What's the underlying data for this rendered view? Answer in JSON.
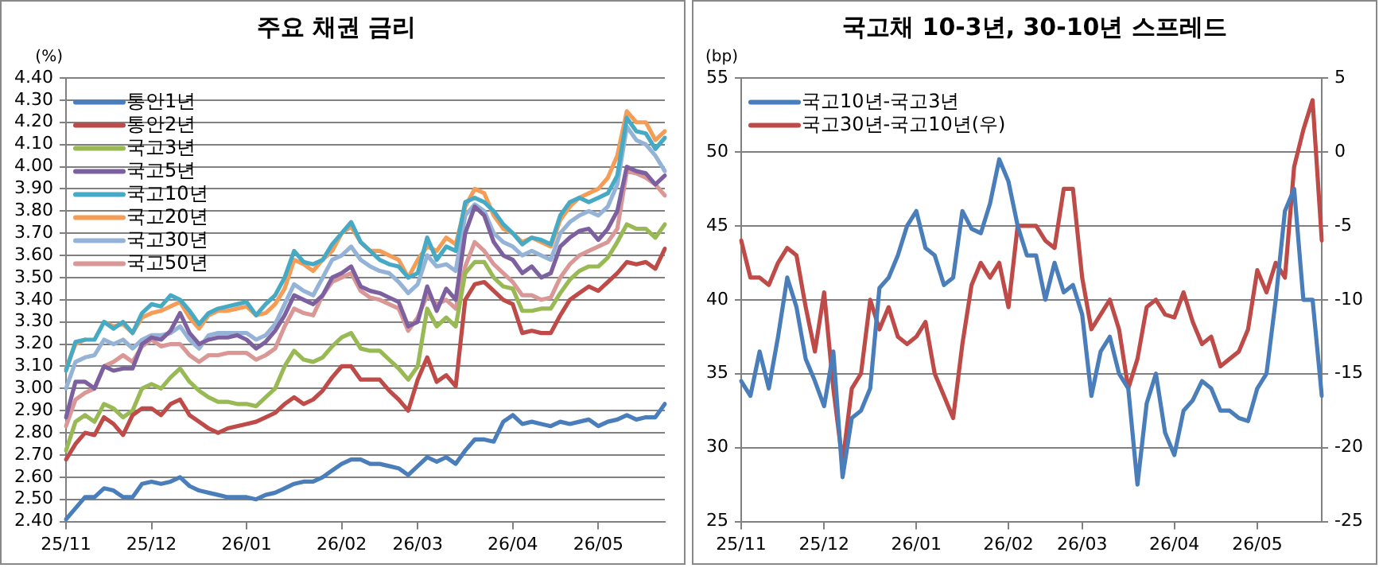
{
  "chart_data": [
    {
      "type": "line",
      "title": "주요 채권 금리",
      "ylabel": "(%)",
      "categories": [
        "25/11",
        null,
        null,
        null,
        null,
        null,
        null,
        null,
        null,
        "25/12",
        null,
        null,
        null,
        null,
        null,
        null,
        null,
        null,
        null,
        "26/01",
        null,
        null,
        null,
        null,
        null,
        null,
        null,
        null,
        null,
        "26/02",
        null,
        null,
        null,
        null,
        null,
        null,
        null,
        "26/03",
        null,
        null,
        null,
        null,
        null,
        null,
        null,
        null,
        null,
        "26/04",
        null,
        null,
        null,
        null,
        null,
        null,
        null,
        null,
        "26/05",
        null,
        null,
        null,
        null,
        null,
        null,
        null
      ],
      "ylim": [
        2.4,
        4.4
      ],
      "yticks": [
        {
          "value": 2.4,
          "label": "2.40"
        },
        {
          "value": 2.5,
          "label": "2.50"
        },
        {
          "value": 2.6,
          "label": "2.60"
        },
        {
          "value": 2.7,
          "label": "2.70"
        },
        {
          "value": 2.8,
          "label": "2.80"
        },
        {
          "value": 2.9,
          "label": "2.90"
        },
        {
          "value": 3.0,
          "label": "3.00"
        },
        {
          "value": 3.1,
          "label": "3.10"
        },
        {
          "value": 3.2,
          "label": "3.20"
        },
        {
          "value": 3.3,
          "label": "3.30"
        },
        {
          "value": 3.4,
          "label": "3.40"
        },
        {
          "value": 3.5,
          "label": "3.50"
        },
        {
          "value": 3.6,
          "label": "3.60"
        },
        {
          "value": 3.7,
          "label": "3.70"
        },
        {
          "value": 3.8,
          "label": "3.80"
        },
        {
          "value": 3.9,
          "label": "3.90"
        },
        {
          "value": 4.0,
          "label": "4.00"
        },
        {
          "value": 4.1,
          "label": "4.10"
        },
        {
          "value": 4.2,
          "label": "4.20"
        },
        {
          "value": 4.3,
          "label": "4.30"
        },
        {
          "value": 4.4,
          "label": "4.40"
        }
      ],
      "grid": "y",
      "legend": "top left",
      "marker": "none",
      "line_style": "solid",
      "series": [
        {
          "name": "통안1년",
          "color": "#4a7ebb",
          "values": [
            2.41,
            2.46,
            2.51,
            2.51,
            2.55,
            2.54,
            2.51,
            2.51,
            2.57,
            2.58,
            2.57,
            2.58,
            2.6,
            2.56,
            2.54,
            2.53,
            2.52,
            2.51,
            2.51,
            2.51,
            2.5,
            2.52,
            2.53,
            2.55,
            2.57,
            2.58,
            2.58,
            2.6,
            2.63,
            2.66,
            2.68,
            2.68,
            2.66,
            2.66,
            2.65,
            2.64,
            2.61,
            2.65,
            2.69,
            2.67,
            2.69,
            2.66,
            2.72,
            2.77,
            2.77,
            2.76,
            2.85,
            2.88,
            2.84,
            2.85,
            2.84,
            2.83,
            2.85,
            2.84,
            2.85,
            2.86,
            2.83,
            2.85,
            2.86,
            2.88,
            2.86,
            2.87,
            2.87,
            2.93
          ]
        },
        {
          "name": "통안2년",
          "color": "#be4b48",
          "values": [
            2.68,
            2.75,
            2.8,
            2.79,
            2.87,
            2.84,
            2.79,
            2.88,
            2.91,
            2.91,
            2.88,
            2.93,
            2.95,
            2.88,
            2.85,
            2.82,
            2.8,
            2.82,
            2.83,
            2.84,
            2.85,
            2.87,
            2.89,
            2.93,
            2.96,
            2.93,
            2.95,
            2.99,
            3.05,
            3.1,
            3.1,
            3.04,
            3.04,
            3.04,
            2.99,
            2.95,
            2.9,
            3.04,
            3.14,
            3.03,
            3.06,
            3.01,
            3.4,
            3.47,
            3.48,
            3.44,
            3.4,
            3.38,
            3.25,
            3.26,
            3.25,
            3.25,
            3.33,
            3.4,
            3.43,
            3.46,
            3.44,
            3.48,
            3.52,
            3.57,
            3.56,
            3.57,
            3.54,
            3.63
          ]
        },
        {
          "name": "국고3년",
          "color": "#98b954",
          "values": [
            2.72,
            2.85,
            2.88,
            2.85,
            2.93,
            2.91,
            2.87,
            2.9,
            3.0,
            3.02,
            3.0,
            3.05,
            3.09,
            3.03,
            2.99,
            2.96,
            2.94,
            2.94,
            2.93,
            2.93,
            2.92,
            2.96,
            3.0,
            3.1,
            3.17,
            3.13,
            3.12,
            3.14,
            3.19,
            3.23,
            3.25,
            3.18,
            3.17,
            3.17,
            3.13,
            3.09,
            3.04,
            3.1,
            3.36,
            3.28,
            3.32,
            3.28,
            3.52,
            3.57,
            3.57,
            3.5,
            3.46,
            3.45,
            3.35,
            3.35,
            3.36,
            3.36,
            3.43,
            3.49,
            3.53,
            3.55,
            3.55,
            3.59,
            3.66,
            3.74,
            3.72,
            3.72,
            3.68,
            3.74
          ]
        },
        {
          "name": "국고5년",
          "color": "#7d60a0",
          "values": [
            2.87,
            3.03,
            3.03,
            3.0,
            3.1,
            3.08,
            3.09,
            3.09,
            3.2,
            3.23,
            3.22,
            3.26,
            3.34,
            3.25,
            3.2,
            3.22,
            3.23,
            3.23,
            3.24,
            3.22,
            3.18,
            3.21,
            3.26,
            3.33,
            3.42,
            3.4,
            3.38,
            3.42,
            3.5,
            3.52,
            3.55,
            3.46,
            3.44,
            3.43,
            3.41,
            3.39,
            3.28,
            3.3,
            3.46,
            3.35,
            3.45,
            3.4,
            3.7,
            3.82,
            3.78,
            3.66,
            3.6,
            3.58,
            3.52,
            3.55,
            3.5,
            3.52,
            3.64,
            3.68,
            3.71,
            3.72,
            3.67,
            3.72,
            3.8,
            4.0,
            3.98,
            3.97,
            3.92,
            3.96
          ]
        },
        {
          "name": "국고10년",
          "color": "#46aac5",
          "values": [
            3.08,
            3.21,
            3.22,
            3.22,
            3.3,
            3.27,
            3.3,
            3.25,
            3.34,
            3.38,
            3.37,
            3.42,
            3.4,
            3.35,
            3.29,
            3.34,
            3.36,
            3.37,
            3.38,
            3.39,
            3.33,
            3.38,
            3.42,
            3.5,
            3.62,
            3.57,
            3.56,
            3.58,
            3.65,
            3.7,
            3.75,
            3.66,
            3.62,
            3.58,
            3.56,
            3.55,
            3.5,
            3.52,
            3.68,
            3.58,
            3.64,
            3.62,
            3.84,
            3.86,
            3.84,
            3.8,
            3.74,
            3.7,
            3.65,
            3.68,
            3.67,
            3.65,
            3.78,
            3.84,
            3.86,
            3.84,
            3.86,
            3.88,
            3.96,
            4.22,
            4.16,
            4.15,
            4.08,
            4.13
          ]
        },
        {
          "name": "국고20년",
          "color": "#f59d56",
          "values": [
            3.09,
            3.2,
            3.22,
            null,
            3.3,
            3.28,
            3.29,
            3.25,
            3.32,
            3.34,
            3.35,
            3.37,
            3.39,
            3.32,
            3.27,
            3.33,
            3.35,
            3.35,
            3.36,
            3.37,
            3.33,
            3.34,
            3.38,
            3.45,
            3.58,
            3.56,
            3.53,
            3.58,
            3.62,
            3.7,
            3.73,
            3.66,
            3.62,
            3.62,
            3.6,
            3.58,
            3.5,
            3.58,
            3.64,
            3.62,
            3.68,
            3.65,
            3.82,
            3.9,
            3.88,
            3.78,
            3.72,
            3.7,
            3.66,
            3.68,
            3.66,
            3.64,
            3.76,
            3.82,
            3.86,
            3.88,
            3.9,
            3.95,
            4.05,
            4.25,
            4.2,
            4.2,
            4.12,
            4.16
          ]
        },
        {
          "name": "국고30년",
          "color": "#95b3d7",
          "values": [
            3.0,
            3.12,
            3.14,
            3.15,
            3.22,
            3.2,
            3.22,
            3.18,
            3.22,
            3.24,
            3.24,
            3.25,
            3.28,
            3.22,
            3.18,
            3.24,
            3.25,
            3.25,
            3.25,
            3.25,
            3.22,
            3.24,
            3.29,
            3.38,
            3.47,
            3.44,
            3.42,
            3.5,
            3.58,
            3.6,
            3.64,
            3.58,
            3.55,
            3.53,
            3.52,
            3.48,
            3.43,
            3.47,
            3.6,
            3.55,
            3.56,
            3.53,
            3.78,
            3.83,
            3.8,
            3.7,
            3.66,
            3.64,
            3.6,
            3.62,
            3.6,
            3.58,
            3.7,
            3.75,
            3.78,
            3.8,
            3.78,
            3.82,
            3.92,
            4.18,
            4.12,
            4.1,
            4.05,
            3.98
          ]
        },
        {
          "name": "국고50년",
          "color": "#d99795",
          "values": [
            2.83,
            2.95,
            2.98,
            3.0,
            3.1,
            3.12,
            3.15,
            3.12,
            3.19,
            3.22,
            3.19,
            3.2,
            3.2,
            3.15,
            3.12,
            3.15,
            3.15,
            3.16,
            3.16,
            3.16,
            3.13,
            3.15,
            3.18,
            3.28,
            3.36,
            3.34,
            3.33,
            3.42,
            3.48,
            3.5,
            3.52,
            3.44,
            3.41,
            3.4,
            3.38,
            3.36,
            3.26,
            3.32,
            3.42,
            3.38,
            3.4,
            3.36,
            3.55,
            3.66,
            3.62,
            3.56,
            3.52,
            3.48,
            3.42,
            3.42,
            3.4,
            3.41,
            3.5,
            3.56,
            3.6,
            3.62,
            3.64,
            3.66,
            3.72,
            3.98,
            3.97,
            3.95,
            3.92,
            3.87
          ]
        }
      ]
    },
    {
      "type": "line",
      "title": "국고채 10-3년, 30-10년 스프레드",
      "ylabel": "(bp)",
      "categories": [
        "25/11",
        null,
        null,
        null,
        null,
        null,
        null,
        null,
        null,
        "25/12",
        null,
        null,
        null,
        null,
        null,
        null,
        null,
        null,
        null,
        "26/01",
        null,
        null,
        null,
        null,
        null,
        null,
        null,
        null,
        null,
        "26/02",
        null,
        null,
        null,
        null,
        null,
        null,
        null,
        "26/03",
        null,
        null,
        null,
        null,
        null,
        null,
        null,
        null,
        null,
        "26/04",
        null,
        null,
        null,
        null,
        null,
        null,
        null,
        null,
        "26/05",
        null,
        null,
        null,
        null,
        null,
        null,
        null
      ],
      "ylim": [
        25,
        55
      ],
      "yticks": [
        25,
        30,
        35,
        40,
        45,
        50,
        55
      ],
      "y2lim": [
        -25,
        5
      ],
      "y2ticks": [
        -25,
        -20,
        -15,
        -10,
        -5,
        0,
        5
      ],
      "grid": "y",
      "legend": "top left",
      "marker": "none",
      "line_style": "solid",
      "series": [
        {
          "name": "국고10년-국고3년",
          "color": "#4a7ebb",
          "values": [
            34.5,
            33.5,
            36.5,
            34,
            37.5,
            41.5,
            39.5,
            36,
            34.5,
            32.8,
            36.5,
            28,
            32,
            32.5,
            34,
            40.8,
            41.5,
            43,
            45,
            46,
            43.5,
            43,
            41,
            41.5,
            46,
            44.8,
            44.5,
            46.5,
            49.5,
            48,
            45,
            43,
            43,
            40,
            42.5,
            40.5,
            41,
            39,
            33.5,
            36.5,
            37.5,
            35,
            34,
            27.5,
            33,
            35,
            31,
            29.5,
            32.5,
            33.2,
            34.5,
            34,
            32.5,
            32.5,
            32,
            31.8,
            34,
            35,
            40,
            46,
            47.5,
            40,
            40,
            33.5
          ]
        },
        {
          "name": "국고30년-국고10년(우)",
          "color": "#be4b48",
          "axis": "y2",
          "values": [
            -6,
            -8.5,
            -8.5,
            -9,
            -7.5,
            -6.5,
            -7,
            -10.5,
            -13.5,
            -9.5,
            -16,
            -21,
            -16,
            -15,
            -10,
            -12,
            -10.5,
            -12.5,
            -13,
            -12.5,
            -11.5,
            -15,
            -16.5,
            -18,
            -13,
            -9,
            -7.5,
            -8.5,
            -7.5,
            -10.5,
            -5,
            -5,
            -5,
            -6,
            -6.5,
            -2.5,
            -2.5,
            -8.5,
            -12,
            -11,
            -10,
            -12,
            -16,
            -14,
            -10.5,
            -10,
            -11,
            -11.2,
            -9.5,
            -11.5,
            -13,
            -12.5,
            -14.5,
            -14,
            -13.5,
            -12,
            -8,
            -9.5,
            -7.5,
            -8.5,
            -1,
            1.5,
            3.5,
            -6
          ]
        }
      ]
    }
  ]
}
